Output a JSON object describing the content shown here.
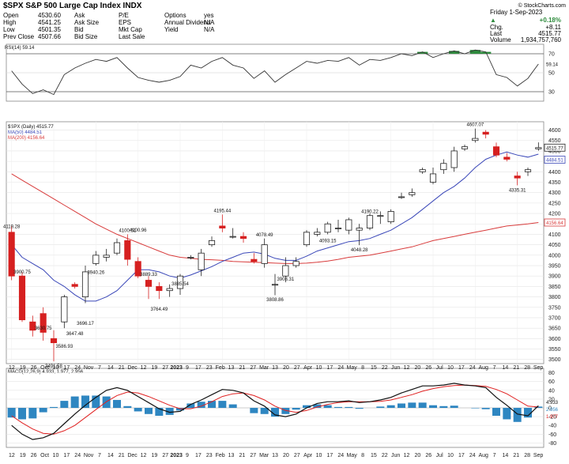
{
  "header": {
    "symbol_title": "$SPX S&P 500 Large Cap Index INDX",
    "source": "© StockCharts.com",
    "date_line": "Friday 1-Sep-2023",
    "change_pct": "+0.18%",
    "labels": {
      "open": "Open",
      "high": "High",
      "low": "Low",
      "prev_close": "Prev Close",
      "ask": "Ask",
      "ask_size": "Ask Size",
      "bid": "Bid",
      "bid_size": "Bid Size",
      "pe": "P/E",
      "eps": "EPS",
      "mkt_cap": "Mkt Cap",
      "last_sale": "Last Sale",
      "options": "Options",
      "dividend": "Annual Dividend",
      "yield": "Yield",
      "chg": "Chg.",
      "last": "Last",
      "volume": "Volume"
    },
    "values": {
      "open": "4530.60",
      "high": "4541.25",
      "low": "4501.35",
      "prev_close": "4507.66",
      "ask": "",
      "ask_size": "",
      "bid": "",
      "bid_size": "",
      "pe": "",
      "eps": "",
      "mkt_cap": "",
      "last_sale": "",
      "options": "yes",
      "dividend": "N/A",
      "yield": "N/A",
      "chg": "+8.11",
      "last": "4515.77",
      "volume": "1,934,757,760"
    }
  },
  "rsi_panel": {
    "legend": "RSI(14) 59.14",
    "ticks": [
      "70",
      "50",
      "30"
    ],
    "current": "59.14"
  },
  "price_panel": {
    "legend_price": "$SPX (Daily) 4515.77",
    "legend_ma50": "MA(50) 4484.51",
    "legend_ma200": "MA(200) 4156.64",
    "ticks": [
      "4600",
      "4550",
      "4500",
      "4450",
      "4400",
      "4350",
      "4300",
      "4250",
      "4200",
      "4150",
      "4100",
      "4050",
      "4000",
      "3950",
      "3900",
      "3850",
      "3800",
      "3750",
      "3700",
      "3650",
      "3600",
      "3550",
      "3500"
    ],
    "current_labels": [
      "4515.77",
      "4484.51",
      "4156.64"
    ]
  },
  "macd_panel": {
    "legend": "MACD(12,26,9) 4.933, 1.977, 2.956",
    "ticks": [
      "80",
      "60",
      "40",
      "20",
      "0",
      "-20",
      "-40",
      "-60",
      "-80"
    ],
    "current_labels": [
      "4.933",
      "2.956",
      "1.977"
    ]
  },
  "x_axis": {
    "labels": [
      "12",
      "19",
      "26",
      "Oct",
      "10",
      "17",
      "24",
      "Nov",
      "7",
      "14",
      "21",
      "Dec",
      "12",
      "19",
      "27",
      "2023",
      "9",
      "17",
      "23",
      "Feb",
      "13",
      "21",
      "27",
      "Mar",
      "13",
      "20",
      "27",
      "Apr",
      "10",
      "17",
      "24",
      "May",
      "8",
      "15",
      "22",
      "Jun",
      "12",
      "20",
      "26",
      "Jul",
      "10",
      "17",
      "24",
      "Aug",
      "7",
      "14",
      "21",
      "28",
      "Sep"
    ]
  },
  "colors": {
    "up": "#222222",
    "down": "#d62020",
    "ma50": "#3a47b8",
    "ma200": "#d83b3b",
    "rsi_line": "#333333",
    "rsi_fill": "#2e8b3d",
    "macd": "#111111",
    "signal": "#e02020",
    "hist": "#2e86c1",
    "grid": "#e4e4e4"
  },
  "chart_data": [
    {
      "type": "candlestick",
      "title": "$SPX S&P 500 Large Cap Index INDX",
      "series_name": "$SPX (Daily)",
      "x": [
        "Sep 12",
        "Sep 20",
        "Sep 28",
        "Oct 6",
        "Oct 13",
        "Oct 21",
        "Oct 28",
        "Nov 4",
        "Nov 11",
        "Nov 18",
        "Nov 25",
        "Dec 2",
        "Dec 9",
        "Dec 16",
        "Dec 23",
        "Dec 30",
        "Jan 6",
        "Jan 13",
        "Jan 20",
        "Jan 27",
        "Feb 3",
        "Feb 10",
        "Feb 17",
        "Feb 24",
        "Mar 3",
        "Mar 10",
        "Mar 17",
        "Mar 24",
        "Mar 31",
        "Apr 6",
        "Apr 14",
        "Apr 21",
        "Apr 28",
        "May 5",
        "May 12",
        "May 19",
        "May 26",
        "Jun 2",
        "Jun 9",
        "Jun 16",
        "Jun 23",
        "Jun 30",
        "Jul 7",
        "Jul 14",
        "Jul 21",
        "Jul 28",
        "Aug 4",
        "Aug 11",
        "Aug 18",
        "Aug 25",
        "Sep 1"
      ],
      "open": [
        4110,
        3900,
        3680,
        3720,
        3600,
        3680,
        3860,
        3800,
        3960,
        3990,
        4010,
        4070,
        3970,
        3880,
        3850,
        3830,
        3840,
        3990,
        3930,
        4050,
        4140,
        4090,
        4090,
        3980,
        3960,
        3860,
        3900,
        3950,
        4050,
        4100,
        4110,
        4130,
        4120,
        4120,
        4130,
        4190,
        4160,
        4280,
        4290,
        4400,
        4350,
        4410,
        4420,
        4510,
        4550,
        4590,
        4520,
        4470,
        4380,
        4400,
        4510
      ],
      "close": [
        3900,
        3690,
        3640,
        3630,
        3580,
        3800,
        3850,
        3920,
        4000,
        4000,
        4060,
        3980,
        3900,
        3850,
        3830,
        3840,
        3900,
        3990,
        4010,
        4070,
        4130,
        4090,
        4080,
        3970,
        4050,
        3860,
        3950,
        3970,
        4110,
        4110,
        4150,
        4130,
        4170,
        4130,
        4190,
        4190,
        4210,
        4280,
        4300,
        4410,
        4390,
        4440,
        4500,
        4520,
        4560,
        4580,
        4480,
        4460,
        4370,
        4410,
        4515.77
      ],
      "high": [
        4140,
        3920,
        3710,
        3750,
        3640,
        3810,
        3870,
        3950,
        4020,
        4030,
        4080,
        4100,
        3990,
        3900,
        3870,
        3860,
        3910,
        4000,
        4030,
        4090,
        4195,
        4130,
        4110,
        4010,
        4080,
        3910,
        3990,
        3990,
        4120,
        4130,
        4160,
        4170,
        4180,
        4150,
        4200,
        4210,
        4220,
        4300,
        4320,
        4420,
        4420,
        4460,
        4520,
        4530,
        4607,
        4600,
        4540,
        4490,
        4400,
        4420,
        4541
      ],
      "low": [
        3880,
        3680,
        3610,
        3590,
        3491,
        3650,
        3840,
        3770,
        3950,
        3970,
        4000,
        3950,
        3890,
        3790,
        3790,
        3800,
        3810,
        3980,
        3900,
        4040,
        4110,
        4080,
        4060,
        3960,
        3940,
        3808,
        3870,
        3940,
        4040,
        4090,
        4100,
        4110,
        4100,
        4048,
        4120,
        4150,
        4150,
        4270,
        4280,
        4390,
        4340,
        4390,
        4400,
        4500,
        4540,
        4560,
        4470,
        4450,
        4335,
        4380,
        4501
      ],
      "ma50": [
        4050,
        3990,
        3960,
        3930,
        3880,
        3850,
        3810,
        3780,
        3780,
        3800,
        3830,
        3880,
        3930,
        3930,
        3920,
        3900,
        3890,
        3905,
        3925,
        3945,
        3970,
        3990,
        4010,
        4015,
        4005,
        3985,
        3975,
        3975,
        3995,
        4020,
        4035,
        4050,
        4065,
        4070,
        4080,
        4100,
        4120,
        4150,
        4180,
        4220,
        4260,
        4300,
        4330,
        4370,
        4420,
        4460,
        4480,
        4495,
        4480,
        4470,
        4484.51
      ],
      "ma200": [
        4390,
        4360,
        4330,
        4300,
        4270,
        4240,
        4210,
        4180,
        4150,
        4125,
        4100,
        4080,
        4060,
        4040,
        4020,
        4000,
        3990,
        3985,
        3980,
        3978,
        3975,
        3970,
        3968,
        3966,
        3964,
        3962,
        3960,
        3960,
        3962,
        3966,
        3972,
        3980,
        3990,
        3995,
        4000,
        4010,
        4020,
        4030,
        4040,
        4055,
        4070,
        4080,
        4090,
        4100,
        4110,
        4120,
        4130,
        4140,
        4145,
        4150,
        4156.64
      ],
      "annotations": [
        {
          "x": "Sep 12",
          "y": 4119.28,
          "label": "4119.28"
        },
        {
          "x": "Sep 20",
          "y": 3900.75,
          "label": "3900.75"
        },
        {
          "x": "Oct 6",
          "y": 3630.75,
          "label": "3630.75"
        },
        {
          "x": "Oct 13",
          "y": 3491.58,
          "label": "3491.58"
        },
        {
          "x": "Oct 21",
          "y": 3586.93,
          "label": "3586.93"
        },
        {
          "x": "Oct 28",
          "y": 3647.48,
          "label": "3647.48"
        },
        {
          "x": "Nov 4",
          "y": 3696.17,
          "label": "3696.17"
        },
        {
          "x": "Nov 11",
          "y": 3940.26,
          "label": "3940.26"
        },
        {
          "x": "Dec 2",
          "y": 4100.51,
          "label": "4100.51"
        },
        {
          "x": "Dec 9",
          "y": 4100.96,
          "label": "4100.96"
        },
        {
          "x": "Dec 16",
          "y": 3889.33,
          "label": "3889.33"
        },
        {
          "x": "Dec 23",
          "y": 3764.49,
          "label": "3764.49"
        },
        {
          "x": "Jan 6",
          "y": 3885.54,
          "label": "3885.54"
        },
        {
          "x": "Feb 3",
          "y": 4195.44,
          "label": "4195.44"
        },
        {
          "x": "Mar 3",
          "y": 4078.49,
          "label": "4078.49"
        },
        {
          "x": "Mar 10",
          "y": 3808.86,
          "label": "3808.86"
        },
        {
          "x": "Mar 17",
          "y": 3908.31,
          "label": "3908.31"
        },
        {
          "x": "Apr 14",
          "y": 4093.15,
          "label": "4093.15"
        },
        {
          "x": "May 5",
          "y": 4048.28,
          "label": "4048.28"
        },
        {
          "x": "May 12",
          "y": 4190.22,
          "label": "4190.22"
        },
        {
          "x": "Jul 21",
          "y": 4607.07,
          "label": "4607.07"
        },
        {
          "x": "Aug 18",
          "y": 4335.31,
          "label": "4335.31"
        }
      ],
      "ylim": [
        3480,
        4640
      ]
    },
    {
      "type": "line",
      "name": "RSI(14)",
      "values": [
        52,
        38,
        28,
        32,
        27,
        48,
        55,
        60,
        64,
        62,
        66,
        55,
        45,
        42,
        40,
        42,
        46,
        58,
        55,
        62,
        66,
        58,
        55,
        44,
        52,
        40,
        48,
        55,
        62,
        60,
        63,
        62,
        66,
        58,
        64,
        63,
        66,
        70,
        68,
        72,
        66,
        70,
        73,
        70,
        74,
        72,
        48,
        45,
        36,
        44,
        59.14
      ],
      "ylim": [
        20,
        80
      ],
      "levels": [
        70,
        30
      ]
    },
    {
      "type": "line",
      "name": "MACD(12,26,9)",
      "macd": [
        -40,
        -60,
        -72,
        -68,
        -58,
        -36,
        -14,
        6,
        24,
        40,
        46,
        40,
        26,
        12,
        -2,
        -10,
        -8,
        8,
        18,
        30,
        42,
        40,
        34,
        16,
        4,
        -16,
        -20,
        -14,
        0,
        10,
        14,
        14,
        16,
        12,
        14,
        18,
        24,
        34,
        42,
        50,
        50,
        52,
        56,
        52,
        50,
        46,
        24,
        6,
        -14,
        -18,
        4.933
      ],
      "signal": [
        -18,
        -34,
        -48,
        -58,
        -60,
        -52,
        -40,
        -22,
        -4,
        14,
        28,
        36,
        34,
        26,
        16,
        6,
        -2,
        -2,
        4,
        14,
        26,
        32,
        34,
        28,
        18,
        4,
        -6,
        -10,
        -6,
        2,
        8,
        12,
        14,
        14,
        14,
        15,
        18,
        24,
        30,
        38,
        44,
        48,
        51,
        52,
        51,
        49,
        42,
        32,
        18,
        4,
        1.977
      ],
      "histogram": [
        -22,
        -26,
        -24,
        -10,
        2,
        16,
        26,
        28,
        28,
        26,
        18,
        4,
        -8,
        -14,
        -18,
        -16,
        -6,
        10,
        14,
        16,
        16,
        8,
        0,
        -12,
        -14,
        -20,
        -14,
        -4,
        6,
        8,
        6,
        2,
        2,
        -2,
        0,
        3,
        6,
        10,
        12,
        12,
        6,
        4,
        5,
        0,
        -1,
        -3,
        -18,
        -26,
        -32,
        -22,
        2.956
      ],
      "ylim": [
        -90,
        90
      ]
    }
  ]
}
